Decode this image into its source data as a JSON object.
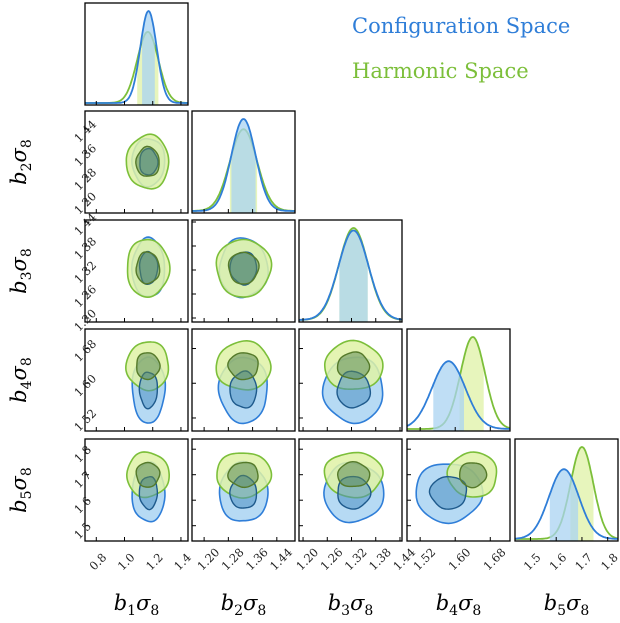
{
  "colors": {
    "configuration": "#2f7ed8",
    "configuration_fill_outer": "#a9d3f2",
    "configuration_fill_inner": "#4a8fc2",
    "harmonic": "#7cbf3a",
    "harmonic_fill_outer": "#dff2a6",
    "harmonic_fill_inner": "#5c8a55"
  },
  "legend": [
    {
      "label": "Configuration Space",
      "color": "#2f7ed8"
    },
    {
      "label": "Harmonic Space",
      "color": "#7cbf3a"
    }
  ],
  "chart_data": {
    "type": "corner",
    "parameters": [
      {
        "base": "b",
        "index": "1",
        "suffix": "σ",
        "suffix_index": "8",
        "range": [
          0.72,
          1.45
        ],
        "ticks": [
          "0.8",
          "1.0",
          "1.2",
          "1.4"
        ],
        "tick_values": [
          0.8,
          1.0,
          1.2,
          1.4
        ]
      },
      {
        "base": "b",
        "index": "2",
        "suffix": "σ",
        "suffix_index": "8",
        "range": [
          1.16,
          1.5
        ],
        "ticks": [
          "1.20",
          "1.28",
          "1.36",
          "1.44"
        ],
        "tick_values": [
          1.2,
          1.28,
          1.36,
          1.44
        ]
      },
      {
        "base": "b",
        "index": "3",
        "suffix": "σ",
        "suffix_index": "8",
        "range": [
          1.19,
          1.445
        ],
        "ticks": [
          "1.20",
          "1.26",
          "1.32",
          "1.38",
          "1.44"
        ],
        "tick_values": [
          1.2,
          1.26,
          1.32,
          1.38,
          1.44
        ]
      },
      {
        "base": "b",
        "index": "4",
        "suffix": "σ",
        "suffix_index": "8",
        "range": [
          1.49,
          1.725
        ],
        "ticks": [
          "1.52",
          "1.60",
          "1.68"
        ],
        "tick_values": [
          1.52,
          1.6,
          1.68
        ]
      },
      {
        "base": "b",
        "index": "5",
        "suffix": "σ",
        "suffix_index": "8",
        "range": [
          1.44,
          1.84
        ],
        "ticks": [
          "1.5",
          "1.6",
          "1.7",
          "1.8"
        ],
        "tick_values": [
          1.5,
          1.6,
          1.7,
          1.8
        ]
      }
    ],
    "series": [
      {
        "name": "Configuration Space",
        "mean": [
          1.17,
          1.33,
          1.325,
          1.585,
          1.63
        ],
        "sigma": [
          0.058,
          0.04,
          0.037,
          0.038,
          0.058
        ],
        "interval68": [
          [
            1.125,
            1.215
          ],
          [
            1.29,
            1.37
          ],
          [
            1.29,
            1.36
          ],
          [
            1.55,
            1.62
          ],
          [
            1.575,
            1.685
          ]
        ]
      },
      {
        "name": "Harmonic Space",
        "mean": [
          1.165,
          1.33,
          1.325,
          1.64,
          1.7
        ],
        "sigma": [
          0.075,
          0.045,
          0.036,
          0.028,
          0.044
        ],
        "interval68": [
          [
            1.09,
            1.24
          ],
          [
            1.285,
            1.375
          ],
          [
            1.29,
            1.36
          ],
          [
            1.61,
            1.665
          ],
          [
            1.655,
            1.745
          ]
        ]
      }
    ]
  }
}
